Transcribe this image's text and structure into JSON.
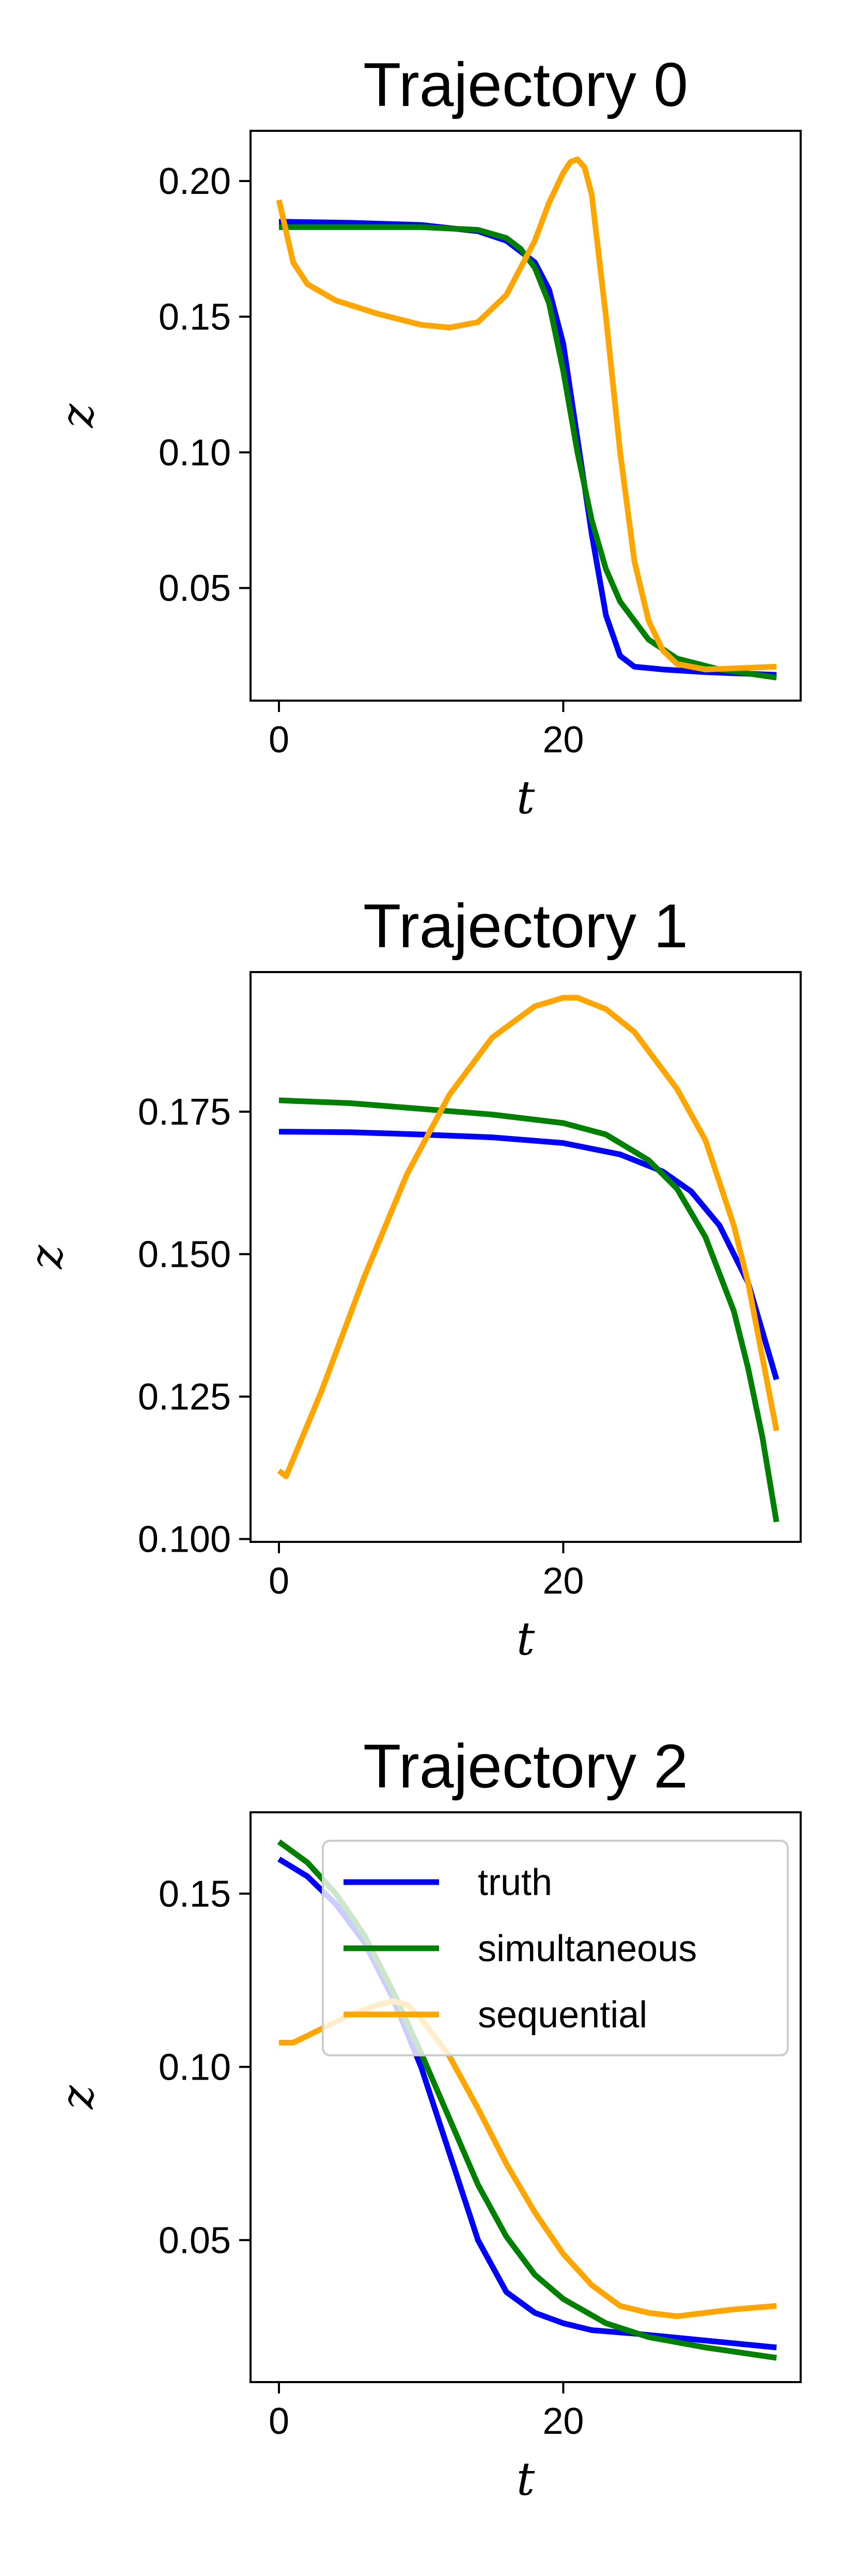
{
  "colors": {
    "truth": "#0000ff",
    "simultaneous": "#008000",
    "sequential": "#ffa500"
  },
  "legend": {
    "entries": [
      "truth",
      "simultaneous",
      "sequential"
    ],
    "placement": "upper-right"
  },
  "chart_data": [
    {
      "type": "line",
      "title": "Trajectory 0",
      "xlabel": "t",
      "ylabel": "z",
      "xlim": [
        -2,
        36.7
      ],
      "ylim": [
        0.0085,
        0.2185
      ],
      "xticks": [
        0,
        20
      ],
      "xtick_labels": [
        "0",
        "20"
      ],
      "yticks": [
        0.05,
        0.1,
        0.15,
        0.2
      ],
      "ytick_labels": [
        "0.05",
        "0.10",
        "0.15",
        "0.20"
      ],
      "show_legend": false,
      "series": [
        {
          "name": "truth",
          "x": [
            0,
            5,
            10,
            14,
            16,
            18,
            19,
            20,
            21,
            22,
            23,
            24,
            25,
            27,
            30,
            35
          ],
          "y": [
            0.185,
            0.1846,
            0.1838,
            0.1815,
            0.178,
            0.17,
            0.16,
            0.14,
            0.105,
            0.07,
            0.04,
            0.025,
            0.021,
            0.02,
            0.019,
            0.018
          ]
        },
        {
          "name": "simultaneous",
          "x": [
            0,
            5,
            10,
            14,
            16,
            17,
            18,
            19,
            20,
            21,
            22,
            23,
            24,
            26,
            28,
            31,
            35
          ],
          "y": [
            0.183,
            0.183,
            0.183,
            0.182,
            0.179,
            0.175,
            0.168,
            0.155,
            0.13,
            0.1,
            0.075,
            0.057,
            0.045,
            0.031,
            0.024,
            0.02,
            0.017
          ]
        },
        {
          "name": "sequential",
          "x": [
            0,
            1,
            2,
            4,
            7,
            10,
            12,
            14,
            16,
            18,
            19,
            20,
            20.5,
            21,
            21.5,
            22,
            23,
            24,
            25,
            26,
            27,
            28,
            30,
            35
          ],
          "y": [
            0.193,
            0.17,
            0.162,
            0.156,
            0.151,
            0.147,
            0.146,
            0.148,
            0.158,
            0.178,
            0.192,
            0.203,
            0.207,
            0.208,
            0.205,
            0.195,
            0.15,
            0.1,
            0.06,
            0.038,
            0.027,
            0.022,
            0.02,
            0.021
          ]
        }
      ]
    },
    {
      "type": "line",
      "title": "Trajectory 1",
      "xlabel": "t",
      "ylabel": "z",
      "xlim": [
        -2,
        36.7
      ],
      "ylim": [
        0.0995,
        0.1995
      ],
      "xticks": [
        0,
        20
      ],
      "xtick_labels": [
        "0",
        "20"
      ],
      "yticks": [
        0.1,
        0.125,
        0.15,
        0.175
      ],
      "ytick_labels": [
        "0.100",
        "0.125",
        "0.150",
        "0.175"
      ],
      "show_legend": false,
      "series": [
        {
          "name": "truth",
          "x": [
            0,
            5,
            10,
            15,
            20,
            24,
            27,
            29,
            31,
            33,
            35
          ],
          "y": [
            0.1715,
            0.1714,
            0.171,
            0.1705,
            0.1695,
            0.1675,
            0.1645,
            0.161,
            0.155,
            0.145,
            0.128
          ]
        },
        {
          "name": "simultaneous",
          "x": [
            0,
            5,
            10,
            15,
            20,
            23,
            26,
            28,
            30,
            32,
            33,
            34,
            35
          ],
          "y": [
            0.177,
            0.1765,
            0.1755,
            0.1745,
            0.173,
            0.171,
            0.1665,
            0.1615,
            0.153,
            0.14,
            0.13,
            0.118,
            0.103
          ]
        },
        {
          "name": "sequential",
          "x": [
            0,
            0.5,
            1,
            3,
            6,
            9,
            12,
            15,
            18,
            20,
            21,
            23,
            25,
            28,
            30,
            32,
            33,
            34,
            35
          ],
          "y": [
            0.112,
            0.111,
            0.114,
            0.126,
            0.146,
            0.164,
            0.178,
            0.188,
            0.1935,
            0.195,
            0.195,
            0.193,
            0.189,
            0.179,
            0.17,
            0.155,
            0.145,
            0.132,
            0.119
          ]
        }
      ]
    },
    {
      "type": "line",
      "title": "Trajectory 2",
      "xlabel": "t",
      "ylabel": "z",
      "xlim": [
        -2,
        36.7
      ],
      "ylim": [
        0.009,
        0.1735
      ],
      "xticks": [
        0,
        20
      ],
      "xtick_labels": [
        "0",
        "20"
      ],
      "yticks": [
        0.05,
        0.1,
        0.15
      ],
      "ytick_labels": [
        "0.05",
        "0.10",
        "0.15"
      ],
      "show_legend": true,
      "series": [
        {
          "name": "truth",
          "x": [
            0,
            2,
            4,
            6,
            8,
            10,
            12,
            14,
            16,
            18,
            20,
            22,
            25,
            30,
            35
          ],
          "y": [
            0.16,
            0.155,
            0.147,
            0.136,
            0.12,
            0.1,
            0.075,
            0.05,
            0.035,
            0.029,
            0.026,
            0.024,
            0.023,
            0.021,
            0.019
          ]
        },
        {
          "name": "simultaneous",
          "x": [
            0,
            2,
            4,
            6,
            8,
            10,
            12,
            14,
            16,
            18,
            20,
            23,
            26,
            30,
            35
          ],
          "y": [
            0.165,
            0.159,
            0.15,
            0.138,
            0.122,
            0.104,
            0.085,
            0.066,
            0.051,
            0.04,
            0.033,
            0.026,
            0.022,
            0.019,
            0.016
          ]
        },
        {
          "name": "sequential",
          "x": [
            0,
            1,
            3,
            5,
            7,
            8,
            9,
            10,
            12,
            14,
            16,
            18,
            20,
            22,
            24,
            26,
            28,
            30,
            32,
            35
          ],
          "y": [
            0.107,
            0.107,
            0.111,
            0.115,
            0.118,
            0.119,
            0.118,
            0.114,
            0.103,
            0.088,
            0.072,
            0.058,
            0.046,
            0.037,
            0.031,
            0.029,
            0.028,
            0.029,
            0.03,
            0.031
          ]
        }
      ]
    }
  ]
}
